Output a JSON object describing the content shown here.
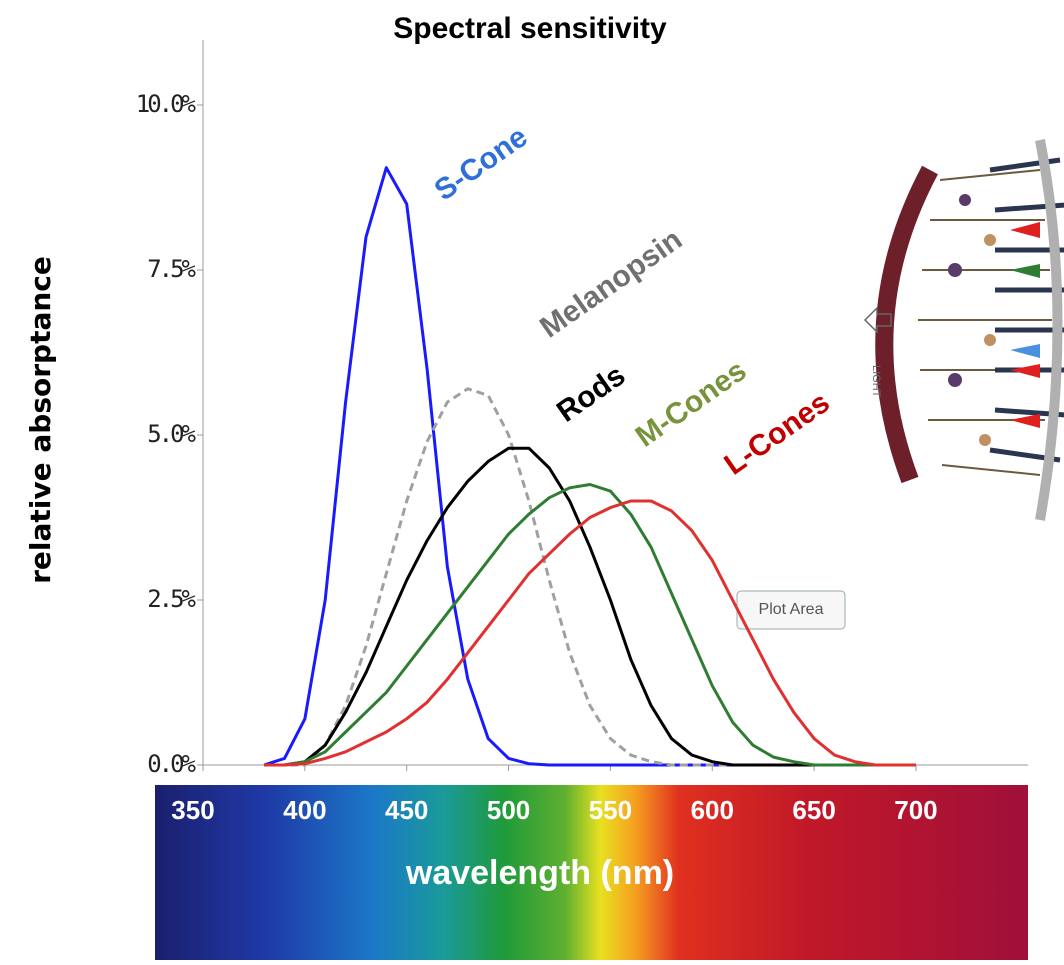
{
  "chart_data": {
    "type": "line",
    "title": "Spectral sensitivity",
    "x_label": "wavelength (nm)",
    "y_label": "relative absorptance",
    "x": [
      380,
      390,
      400,
      410,
      420,
      430,
      440,
      450,
      460,
      470,
      480,
      490,
      500,
      510,
      520,
      530,
      540,
      550,
      560,
      570,
      580,
      590,
      600,
      610,
      620,
      630,
      640,
      650,
      660,
      670,
      680,
      690,
      700
    ],
    "series": [
      {
        "name": "S-Cone",
        "color": "#1a1aff",
        "label_color": "#2f6fdc",
        "dashed": false,
        "values": [
          0,
          0.1,
          0.7,
          2.5,
          5.5,
          8.0,
          9.05,
          8.5,
          6.0,
          3.0,
          1.3,
          0.4,
          0.1,
          0.02,
          0,
          0,
          0,
          0,
          0,
          0,
          0,
          0,
          0,
          0,
          0,
          0,
          0,
          0,
          0,
          0,
          0,
          0,
          0
        ]
      },
      {
        "name": "Melanopsin",
        "color": "#a0a0a0",
        "label_color": "#707070",
        "dashed": true,
        "values": [
          0,
          0,
          0,
          0.3,
          0.9,
          1.8,
          2.9,
          4.0,
          4.9,
          5.5,
          5.7,
          5.6,
          5.0,
          4.0,
          2.8,
          1.7,
          0.9,
          0.4,
          0.15,
          0.05,
          0,
          0,
          0,
          0,
          0,
          0,
          0,
          0,
          0,
          0,
          0,
          0,
          0
        ]
      },
      {
        "name": "Rods",
        "color": "#000000",
        "label_color": "#000000",
        "dashed": false,
        "values": [
          0,
          0,
          0.05,
          0.3,
          0.8,
          1.4,
          2.1,
          2.8,
          3.4,
          3.9,
          4.3,
          4.6,
          4.8,
          4.8,
          4.5,
          4.0,
          3.3,
          2.5,
          1.6,
          0.9,
          0.4,
          0.15,
          0.05,
          0,
          0,
          0,
          0,
          0,
          0,
          0,
          0,
          0,
          0
        ]
      },
      {
        "name": "M-Cones",
        "color": "#2e7d32",
        "label_color": "#77933c",
        "dashed": false,
        "values": [
          0,
          0,
          0.05,
          0.2,
          0.5,
          0.8,
          1.1,
          1.5,
          1.9,
          2.3,
          2.7,
          3.1,
          3.5,
          3.8,
          4.05,
          4.2,
          4.25,
          4.15,
          3.8,
          3.3,
          2.6,
          1.9,
          1.2,
          0.65,
          0.3,
          0.12,
          0.05,
          0,
          0,
          0,
          0,
          0,
          0
        ]
      },
      {
        "name": "L-Cones",
        "color": "#e03030",
        "label_color": "#c00000",
        "dashed": false,
        "values": [
          0,
          0,
          0.02,
          0.1,
          0.2,
          0.35,
          0.5,
          0.7,
          0.95,
          1.3,
          1.7,
          2.1,
          2.5,
          2.9,
          3.2,
          3.5,
          3.75,
          3.9,
          4.0,
          4.0,
          3.85,
          3.55,
          3.1,
          2.5,
          1.9,
          1.3,
          0.8,
          0.4,
          0.15,
          0.05,
          0,
          0,
          0
        ]
      }
    ],
    "xlim": [
      350,
      755
    ],
    "xticks": [
      350,
      400,
      450,
      500,
      550,
      600,
      650,
      700
    ],
    "ylim": [
      0,
      11
    ],
    "yticks": [
      {
        "value": 0,
        "label": "0.0%"
      },
      {
        "value": 2.5,
        "label": "2.5%"
      },
      {
        "value": 5,
        "label": "5.0%"
      },
      {
        "value": 7.5,
        "label": "7.5%"
      },
      {
        "value": 10,
        "label": "10.0%"
      }
    ],
    "tooltip": "Plot Area",
    "illustration_label": "LIGHT"
  }
}
